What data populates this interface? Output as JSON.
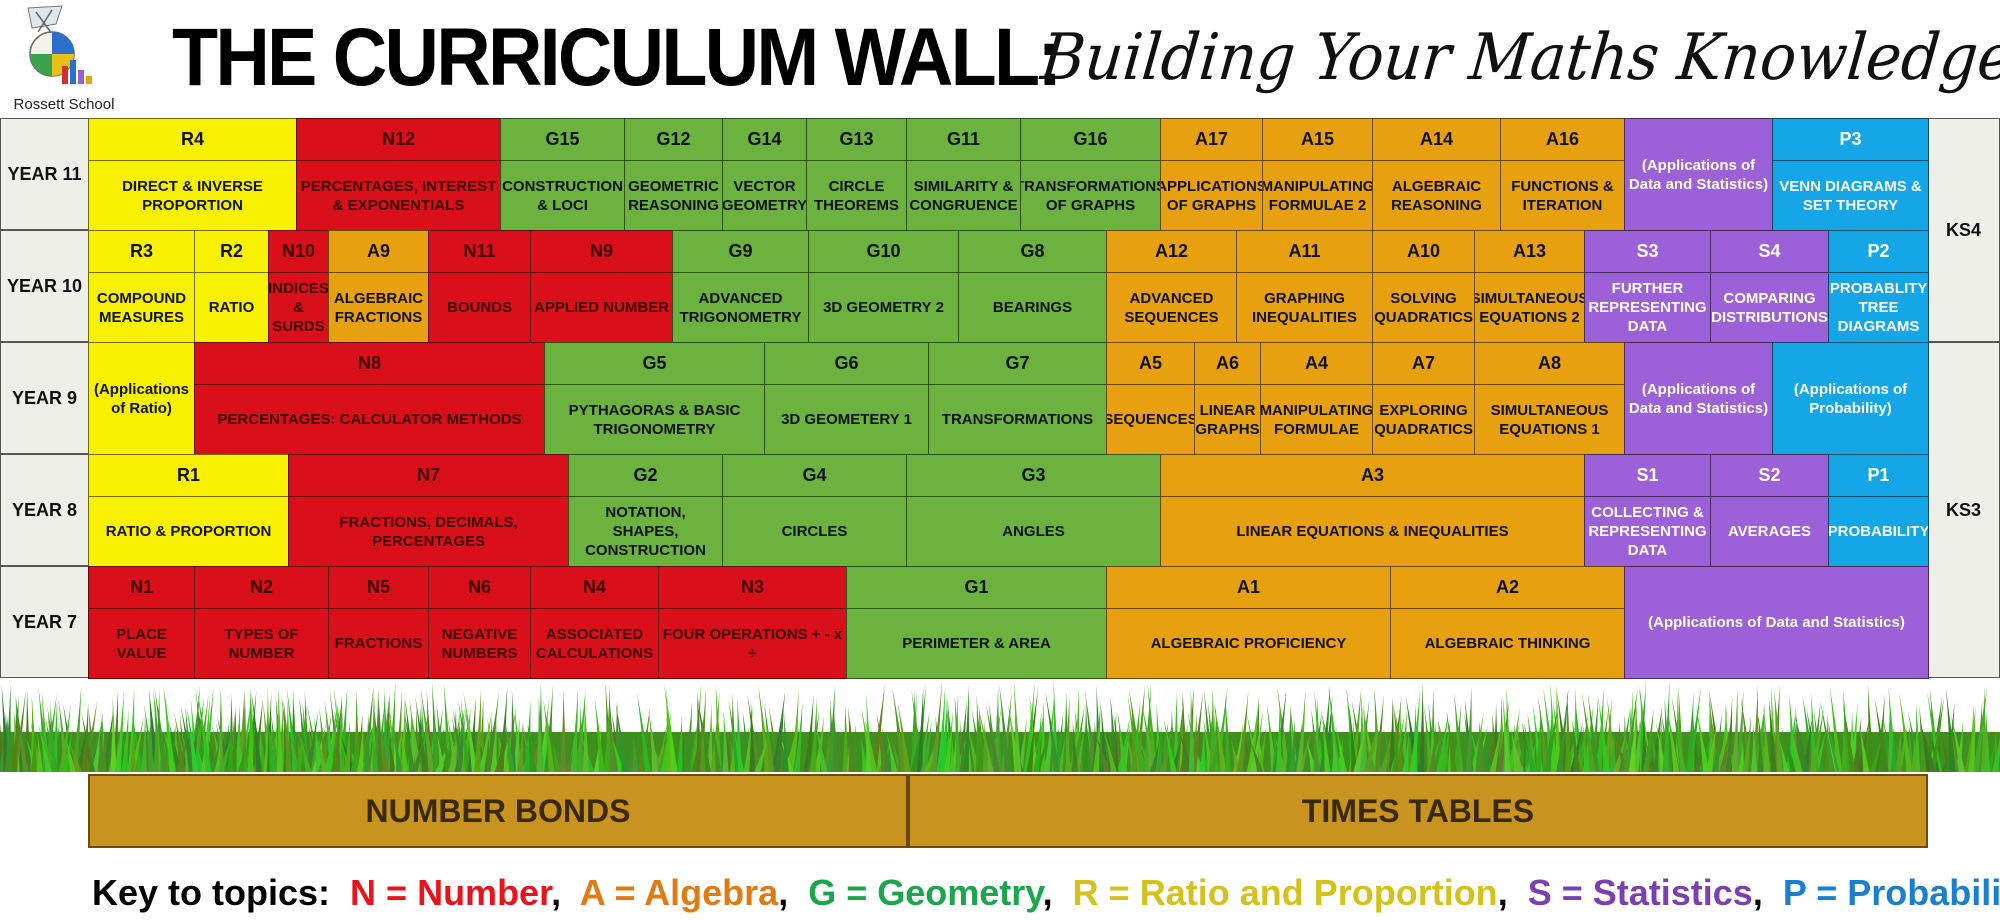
{
  "header": {
    "school_name": "Rossett School",
    "title": "THE CURRICULUM WALL:",
    "subtitle": "Building Your Maths Knowledge"
  },
  "colors": {
    "N": "#e8141c",
    "A": "#e8a312",
    "G": "#6cb33f",
    "R": "#f4ee00",
    "S": "#9b5fd6",
    "P": "#14a7e6"
  },
  "years": [
    "YEAR 11",
    "YEAR 10",
    "YEAR 9",
    "YEAR 8",
    "YEAR 7"
  ],
  "stages": [
    "KS4",
    "KS3"
  ],
  "wall": {
    "year11": [
      {
        "cat": "R",
        "code": "R4",
        "topic": "DIRECT & INVERSE PROPORTION"
      },
      {
        "cat": "N",
        "code": "N12",
        "topic": "PERCENTAGES, INTEREST & EXPONENTIALS"
      },
      {
        "cat": "G",
        "code": "G15",
        "topic": "CONSTRUCTION & LOCI"
      },
      {
        "cat": "G",
        "code": "G12",
        "topic": "GEOMETRIC REASONING"
      },
      {
        "cat": "G",
        "code": "G14",
        "topic": "VECTOR GEOMETRY"
      },
      {
        "cat": "G",
        "code": "G13",
        "topic": "CIRCLE THEOREMS"
      },
      {
        "cat": "G",
        "code": "G11",
        "topic": "SIMILARITY & CONGRUENCE"
      },
      {
        "cat": "G",
        "code": "G16",
        "topic": "TRANSFORMATIONS OF GRAPHS"
      },
      {
        "cat": "A",
        "code": "A17",
        "topic": "APPLICATIONS OF GRAPHS"
      },
      {
        "cat": "A",
        "code": "A15",
        "topic": "MANIPULATING FORMULAE 2"
      },
      {
        "cat": "A",
        "code": "A14",
        "topic": "ALGEBRAIC REASONING"
      },
      {
        "cat": "A",
        "code": "A16",
        "topic": "FUNCTIONS & ITERATION"
      },
      {
        "cat": "S",
        "code": "",
        "topic": "(Applications of Data and Statistics)"
      },
      {
        "cat": "P",
        "code": "P3",
        "topic": "VENN DIAGRAMS & SET THEORY"
      }
    ],
    "year10": [
      {
        "cat": "R",
        "code": "R3",
        "topic": "COMPOUND MEASURES"
      },
      {
        "cat": "R",
        "code": "R2",
        "topic": "RATIO"
      },
      {
        "cat": "N",
        "code": "N10",
        "topic": "INDICES & SURDS"
      },
      {
        "cat": "A",
        "code": "A9",
        "topic": "ALGEBRAIC FRACTIONS"
      },
      {
        "cat": "N",
        "code": "N11",
        "topic": "BOUNDS"
      },
      {
        "cat": "N",
        "code": "N9",
        "topic": "APPLIED NUMBER"
      },
      {
        "cat": "G",
        "code": "G9",
        "topic": "ADVANCED TRIGONOMETRY"
      },
      {
        "cat": "G",
        "code": "G10",
        "topic": "3D GEOMETRY 2"
      },
      {
        "cat": "G",
        "code": "G8",
        "topic": "BEARINGS"
      },
      {
        "cat": "A",
        "code": "A12",
        "topic": "ADVANCED SEQUENCES"
      },
      {
        "cat": "A",
        "code": "A11",
        "topic": "GRAPHING INEQUALITIES"
      },
      {
        "cat": "A",
        "code": "A10",
        "topic": "SOLVING QUADRATICS"
      },
      {
        "cat": "A",
        "code": "A13",
        "topic": "SIMULTANEOUS EQUATIONS 2"
      },
      {
        "cat": "S",
        "code": "S3",
        "topic": "FURTHER REPRESENTING DATA"
      },
      {
        "cat": "S",
        "code": "S4",
        "topic": "COMPARING DISTRIBUTIONS"
      },
      {
        "cat": "P",
        "code": "P2",
        "topic": "PROBABLITY TREE DIAGRAMS"
      }
    ],
    "year9": [
      {
        "cat": "R",
        "code": "",
        "topic": "(Applications of Ratio)"
      },
      {
        "cat": "N",
        "code": "N8",
        "topic": "PERCENTAGES: CALCULATOR METHODS"
      },
      {
        "cat": "G",
        "code": "G5",
        "topic": "PYTHAGORAS & BASIC TRIGONOMETRY"
      },
      {
        "cat": "G",
        "code": "G6",
        "topic": "3D GEOMETERY 1"
      },
      {
        "cat": "G",
        "code": "G7",
        "topic": "TRANSFORMATIONS"
      },
      {
        "cat": "A",
        "code": "A5",
        "topic": "SEQUENCES"
      },
      {
        "cat": "A",
        "code": "A6",
        "topic": "LINEAR GRAPHS"
      },
      {
        "cat": "A",
        "code": "A4",
        "topic": "MANIPULATING FORMULAE"
      },
      {
        "cat": "A",
        "code": "A7",
        "topic": "EXPLORING QUADRATICS"
      },
      {
        "cat": "A",
        "code": "A8",
        "topic": "SIMULTANEOUS EQUATIONS 1"
      },
      {
        "cat": "S",
        "code": "",
        "topic": "(Applications of Data and Statistics)"
      },
      {
        "cat": "P",
        "code": "",
        "topic": "(Applications of Probability)"
      }
    ],
    "year8": [
      {
        "cat": "R",
        "code": "R1",
        "topic": "RATIO & PROPORTION"
      },
      {
        "cat": "N",
        "code": "N7",
        "topic": "FRACTIONS, DECIMALS, PERCENTAGES"
      },
      {
        "cat": "G",
        "code": "G2",
        "topic": "NOTATION, SHAPES, CONSTRUCTION"
      },
      {
        "cat": "G",
        "code": "G4",
        "topic": "CIRCLES"
      },
      {
        "cat": "G",
        "code": "G3",
        "topic": "ANGLES"
      },
      {
        "cat": "A",
        "code": "A3",
        "topic": "LINEAR EQUATIONS & INEQUALITIES"
      },
      {
        "cat": "S",
        "code": "S1",
        "topic": "COLLECTING & REPRESENTING DATA"
      },
      {
        "cat": "S",
        "code": "S2",
        "topic": "AVERAGES"
      },
      {
        "cat": "P",
        "code": "P1",
        "topic": "PROBABILITY"
      }
    ],
    "year7": [
      {
        "cat": "N",
        "code": "N1",
        "topic": "PLACE VALUE"
      },
      {
        "cat": "N",
        "code": "N2",
        "topic": "TYPES OF NUMBER"
      },
      {
        "cat": "N",
        "code": "N5",
        "topic": "FRACTIONS"
      },
      {
        "cat": "N",
        "code": "N6",
        "topic": "NEGATIVE NUMBERS"
      },
      {
        "cat": "N",
        "code": "N4",
        "topic": "ASSOCIATED CALCULATIONS"
      },
      {
        "cat": "N",
        "code": "N3",
        "topic": "FOUR OPERATIONS + - x ÷"
      },
      {
        "cat": "G",
        "code": "G1",
        "topic": "PERIMETER & AREA"
      },
      {
        "cat": "A",
        "code": "A1",
        "topic": "ALGEBRAIC PROFICIENCY"
      },
      {
        "cat": "A",
        "code": "A2",
        "topic": "ALGEBRAIC THINKING"
      },
      {
        "cat": "S",
        "code": "",
        "topic": "(Applications of Data and Statistics)"
      }
    ]
  },
  "foundation": [
    "NUMBER BONDS",
    "TIMES TABLES"
  ],
  "key": {
    "label": "Key to topics:",
    "items": [
      {
        "text": "N = Number",
        "color": "#e8141c"
      },
      {
        "text": "A = Algebra",
        "color": "#e07a12"
      },
      {
        "text": "G = Geometry",
        "color": "#1aa64a"
      },
      {
        "text": "R = Ratio and Proportion",
        "color": "#d4c21a"
      },
      {
        "text": "S = Statistics",
        "color": "#7a3fb0"
      },
      {
        "text": "P = Probability",
        "color": "#1a7fd0"
      }
    ]
  }
}
